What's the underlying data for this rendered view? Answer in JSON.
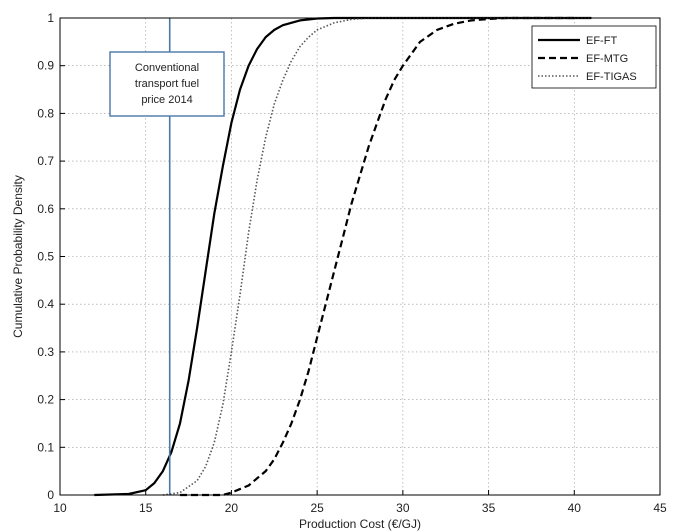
{
  "chart_data": {
    "type": "line",
    "title": "",
    "xlabel": "Production Cost (€/GJ)",
    "ylabel": "Cumulative Probability  Density",
    "xlim": [
      10,
      45
    ],
    "ylim": [
      0,
      1
    ],
    "xticks": [
      "10",
      "15",
      "20",
      "25",
      "30",
      "35",
      "40",
      "45"
    ],
    "yticks": [
      "0",
      "0.1",
      "0.2",
      "0.3",
      "0.4",
      "0.5",
      "0.6",
      "0.7",
      "0.8",
      "0.9",
      "1"
    ],
    "grid": true,
    "legend_position": "top-right",
    "series": [
      {
        "name": "EF-FT",
        "style": "solid",
        "color": "#000000",
        "x": [
          12,
          14,
          15,
          15.5,
          16,
          16.5,
          17,
          17.5,
          18,
          18.5,
          19,
          19.5,
          20,
          20.5,
          21,
          21.5,
          22,
          22.5,
          23,
          23.5,
          24,
          25,
          26,
          28,
          30,
          35,
          40,
          41
        ],
        "y": [
          0,
          0.002,
          0.01,
          0.025,
          0.05,
          0.09,
          0.15,
          0.24,
          0.35,
          0.47,
          0.59,
          0.69,
          0.78,
          0.85,
          0.9,
          0.935,
          0.96,
          0.975,
          0.985,
          0.99,
          0.995,
          0.999,
          1,
          1,
          1,
          1,
          1,
          1
        ]
      },
      {
        "name": "EF-MTG",
        "style": "dashed",
        "color": "#000000",
        "x": [
          17,
          19.5,
          20,
          21,
          22,
          22.5,
          23,
          23.5,
          24,
          24.5,
          25,
          25.5,
          26,
          26.5,
          27,
          27.5,
          28,
          28.5,
          29,
          29.5,
          30,
          31,
          32,
          33,
          34,
          35,
          36,
          38,
          40
        ],
        "y": [
          0,
          0,
          0.005,
          0.02,
          0.05,
          0.075,
          0.11,
          0.15,
          0.2,
          0.26,
          0.33,
          0.4,
          0.47,
          0.54,
          0.61,
          0.67,
          0.73,
          0.78,
          0.83,
          0.87,
          0.9,
          0.95,
          0.975,
          0.988,
          0.995,
          0.998,
          1,
          1,
          1
        ]
      },
      {
        "name": "EF-TIGAS",
        "style": "dotted",
        "color": "#555555",
        "x": [
          16,
          17,
          18,
          18.5,
          19,
          19.5,
          20,
          20.5,
          21,
          21.5,
          22,
          22.5,
          23,
          23.5,
          24,
          24.5,
          25,
          26,
          27,
          28,
          30,
          32,
          36,
          40,
          41
        ],
        "y": [
          0,
          0.005,
          0.03,
          0.06,
          0.11,
          0.19,
          0.3,
          0.42,
          0.55,
          0.66,
          0.75,
          0.82,
          0.87,
          0.91,
          0.94,
          0.96,
          0.975,
          0.99,
          0.997,
          1,
          1,
          1,
          1,
          1,
          1
        ]
      }
    ],
    "reference_line": {
      "x": 16.4,
      "color": "#4a78a8",
      "label_lines": [
        "Conventional",
        "transport fuel",
        "price 2014"
      ]
    }
  }
}
